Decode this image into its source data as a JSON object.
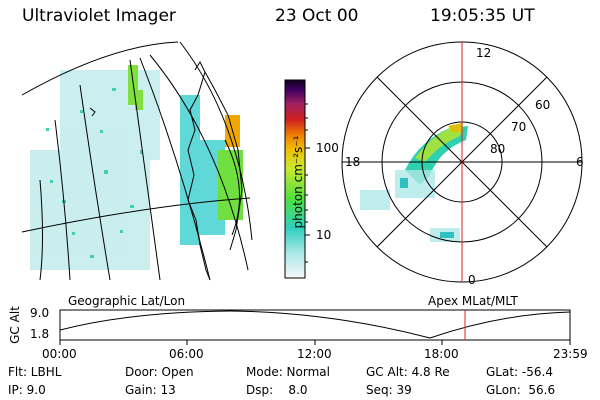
{
  "header": {
    "title": "Ultraviolet Imager",
    "date": "23 Oct 00",
    "time": "19:05:35 UT"
  },
  "colorbar": {
    "label": "photon cm⁻²s⁻¹",
    "ticks": [
      "100",
      "10"
    ]
  },
  "polar": {
    "mlt_labels": [
      "12",
      "18",
      "6",
      "0"
    ],
    "lat_labels": [
      "60",
      "70",
      "80"
    ]
  },
  "panels": {
    "left_caption": "Geographic Lat/Lon",
    "right_caption": "Apex MLat/MLT"
  },
  "altitude_plot": {
    "axis_title": "GC Alt",
    "y_top": "9.0",
    "y_bottom": "1.8",
    "x_ticks": [
      "00:00",
      "06:00",
      "12:00",
      "18:00",
      "23:59"
    ],
    "marker_time": "19:05"
  },
  "footer": {
    "filter": "Flt: LBHL",
    "door": "Door: Open",
    "mode": "Mode: Normal",
    "gc_alt": "GC Alt: 4.8 Re",
    "glat": "GLat: -56.4",
    "ip": "IP: 9.0",
    "gain": "Gain: 13",
    "dsp": "Dsp:    8.0",
    "seq": "Seq: 39",
    "glon": "GLon:  56.6"
  },
  "colors": {
    "accent_marker": "#e02020",
    "aurora_low": "#40d0c0",
    "aurora_mid": "#80e020",
    "aurora_high": "#ffa000"
  }
}
